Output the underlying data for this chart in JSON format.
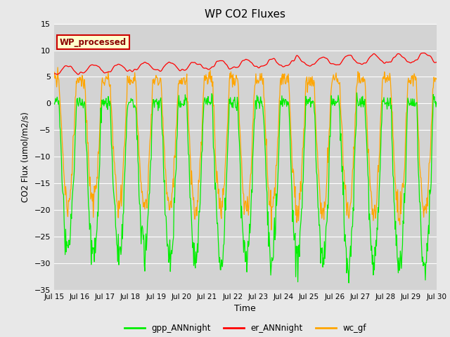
{
  "title": "WP CO2 Fluxes",
  "xlabel": "Time",
  "ylabel": "CO2 Flux (umol/m2/s)",
  "xlim_start": 0,
  "xlim_end": 360,
  "ylim": [
    -35,
    15
  ],
  "yticks": [
    -35,
    -30,
    -25,
    -20,
    -15,
    -10,
    -5,
    0,
    5,
    10,
    15
  ],
  "x_tick_labels": [
    "Jul 15",
    "Jul 16",
    "Jul 17",
    "Jul 18",
    "Jul 19",
    "Jul 20",
    "Jul 21",
    "Jul 22",
    "Jul 23",
    "Jul 24",
    "Jul 25",
    "Jul 26",
    "Jul 27",
    "Jul 28",
    "Jul 29",
    "Jul 30"
  ],
  "x_tick_positions": [
    0,
    24,
    48,
    72,
    96,
    120,
    144,
    168,
    192,
    216,
    240,
    264,
    288,
    312,
    336,
    360
  ],
  "fig_bg": "#e8e8e8",
  "ax_bg": "#d3d3d3",
  "grid_color": "#ffffff",
  "gpp_color": "#00ee00",
  "er_color": "#ff0000",
  "wc_color": "#ffa500",
  "annot_text": "WP_processed",
  "annot_bg": "#ffffcc",
  "annot_edge": "#cc0000",
  "annot_fg": "#8b0000",
  "n_pts_per_day": 48,
  "num_days": 15,
  "seed": 12345
}
